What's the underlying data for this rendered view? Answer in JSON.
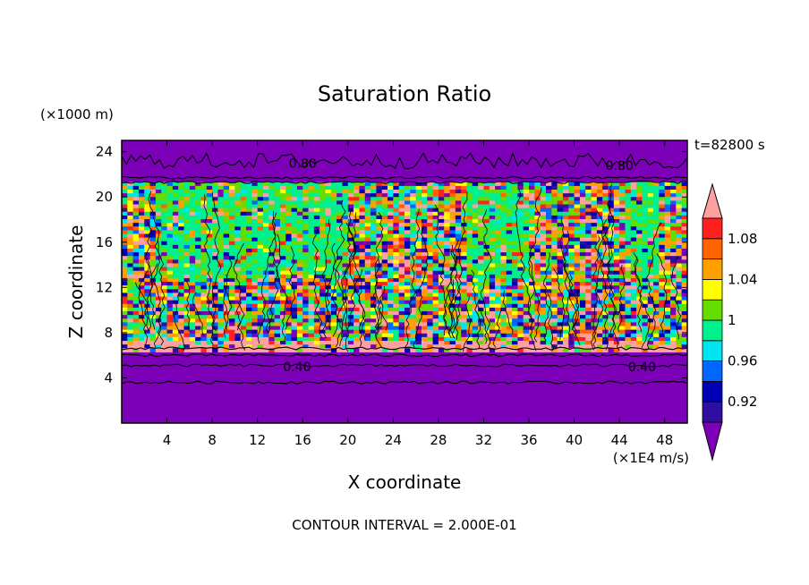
{
  "chart_data": {
    "type": "heatmap",
    "title": "Saturation Ratio",
    "xlabel": "X coordinate",
    "ylabel": "Z coordinate",
    "x_unit": "(×1E4 m/s)",
    "y_unit": "(×1000 m)",
    "time_label": "t=82800 s",
    "footer": "CONTOUR INTERVAL = 2.000E-01",
    "xlim": [
      0,
      50
    ],
    "ylim": [
      0,
      25
    ],
    "x_ticks": [
      4,
      8,
      12,
      16,
      20,
      24,
      28,
      32,
      36,
      40,
      44,
      48
    ],
    "y_ticks": [
      4,
      8,
      12,
      16,
      20,
      24
    ],
    "contour_labels": [
      {
        "text": "0.80",
        "x": 16,
        "y": 23
      },
      {
        "text": "0.80",
        "x": 44,
        "y": 22.8
      },
      {
        "text": "0.40",
        "x": 15.5,
        "y": 5
      },
      {
        "text": "0.40",
        "x": 46,
        "y": 5
      }
    ],
    "bands": [
      {
        "ymin": 0,
        "ymax": 6.3,
        "level": "below"
      },
      {
        "ymin": 6.3,
        "ymax": 21.3,
        "level": "mixed"
      },
      {
        "ymin": 21.3,
        "ymax": 25,
        "level": "below"
      }
    ],
    "colorbar": {
      "tick_labels": [
        "1.08",
        "1.04",
        "1",
        "0.96",
        "0.92"
      ],
      "levels": [
        {
          "min": 0.9,
          "max": 0.92,
          "color": "#2e0fa0"
        },
        {
          "min": 0.92,
          "max": 0.94,
          "color": "#0000b4"
        },
        {
          "min": 0.94,
          "max": 0.96,
          "color": "#0066ff"
        },
        {
          "min": 0.96,
          "max": 0.98,
          "color": "#00e6f0"
        },
        {
          "min": 0.98,
          "max": 1.0,
          "color": "#00f08c"
        },
        {
          "min": 1.0,
          "max": 1.02,
          "color": "#66dd00"
        },
        {
          "min": 1.02,
          "max": 1.04,
          "color": "#ffff00"
        },
        {
          "min": 1.04,
          "max": 1.06,
          "color": "#ffa000"
        },
        {
          "min": 1.06,
          "max": 1.08,
          "color": "#ff6400"
        },
        {
          "min": 1.08,
          "max": 1.1,
          "color": "#ff2020"
        }
      ],
      "under_color": "#7c00b8",
      "over_color": "#ffa0a0"
    }
  }
}
